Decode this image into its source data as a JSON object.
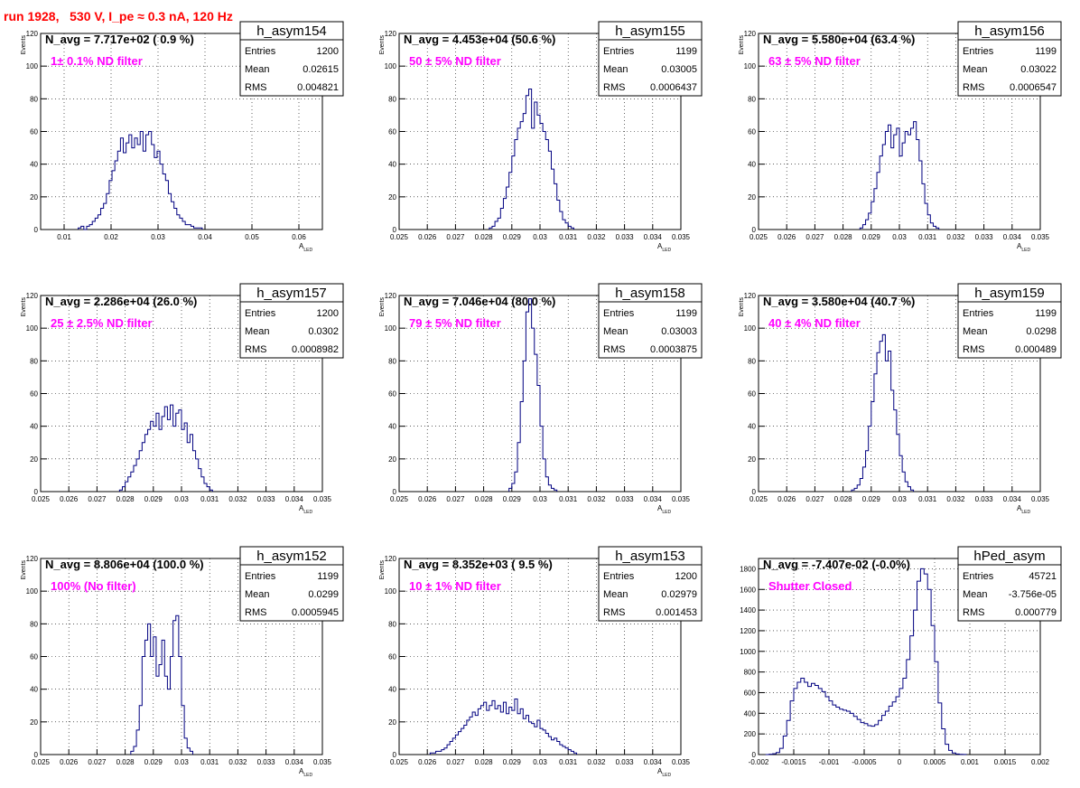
{
  "header": {
    "run_title": "run 1928,   530 V, I_pe ≈ 0.3 nA, 120 Hz"
  },
  "colors": {
    "histogram": "#000080",
    "annotation": "#ff00ff",
    "title": "#ff0000",
    "grid": "#000000"
  },
  "chart_data": [
    {
      "type": "bar",
      "name": "h_asym154",
      "navg": "N_avg = 7.717e+02 ( 0.9 %)",
      "filter": "1± 0.1% ND filter",
      "stats": {
        "entries": "1200",
        "mean": "0.02615",
        "rms": "0.004821"
      },
      "xlabel": "A",
      "xlabel_sub": "LED",
      "ylabel": "Events",
      "xlim": [
        0.005,
        0.065
      ],
      "ylim": [
        0,
        120
      ],
      "xticks": [
        0.01,
        0.02,
        0.03,
        0.04,
        0.05,
        0.06
      ],
      "xtick_labels": [
        "0.01",
        "0.02",
        "0.03",
        "0.04",
        "0.05",
        "0.06"
      ],
      "yticks": [
        0,
        20,
        40,
        60,
        80,
        100,
        120
      ],
      "ytick_labels": [
        "0",
        "20",
        "40",
        "60",
        "80",
        "100",
        "120"
      ],
      "bins": {
        "start": 0.013,
        "width": 0.0006
      },
      "values": [
        1,
        2,
        0,
        2,
        3,
        5,
        7,
        9,
        13,
        16,
        22,
        30,
        36,
        42,
        48,
        56,
        47,
        53,
        58,
        50,
        56,
        52,
        60,
        48,
        58,
        60,
        52,
        44,
        48,
        40,
        34,
        30,
        22,
        17,
        13,
        9,
        7,
        5,
        3,
        3,
        2,
        1,
        1,
        1
      ]
    },
    {
      "type": "bar",
      "name": "h_asym155",
      "navg": "N_avg = 4.453e+04 (50.6 %)",
      "filter": "50 ± 5% ND filter",
      "stats": {
        "entries": "1199",
        "mean": "0.03005",
        "rms": "0.0006437"
      },
      "xlabel": "A",
      "xlabel_sub": "LED",
      "ylabel": "Events",
      "xlim": [
        0.025,
        0.035
      ],
      "ylim": [
        0,
        120
      ],
      "xticks": [
        0.025,
        0.026,
        0.027,
        0.028,
        0.029,
        0.03,
        0.031,
        0.032,
        0.033,
        0.034,
        0.035
      ],
      "xtick_labels": [
        "0.025",
        "0.026",
        "0.027",
        "0.028",
        "0.029",
        "0.03",
        "0.031",
        "0.032",
        "0.033",
        "0.034",
        "0.035"
      ],
      "yticks": [
        0,
        20,
        40,
        60,
        80,
        100,
        120
      ],
      "ytick_labels": [
        "0",
        "20",
        "40",
        "60",
        "80",
        "100",
        "120"
      ],
      "bins": {
        "start": 0.0282,
        "width": 0.0001
      },
      "values": [
        1,
        2,
        5,
        7,
        13,
        19,
        26,
        35,
        45,
        55,
        62,
        66,
        71,
        82,
        86,
        62,
        78,
        70,
        65,
        60,
        55,
        48,
        37,
        28,
        18,
        11,
        6,
        4,
        2,
        1
      ]
    },
    {
      "type": "bar",
      "name": "h_asym156",
      "navg": "N_avg = 5.580e+04 (63.4 %)",
      "filter": "63 ± 5% ND filter",
      "stats": {
        "entries": "1199",
        "mean": "0.03022",
        "rms": "0.0006547"
      },
      "xlabel": "A",
      "xlabel_sub": "LED",
      "ylabel": "Events",
      "xlim": [
        0.025,
        0.035
      ],
      "ylim": [
        0,
        120
      ],
      "xticks": [
        0.025,
        0.026,
        0.027,
        0.028,
        0.029,
        0.03,
        0.031,
        0.032,
        0.033,
        0.034,
        0.035
      ],
      "xtick_labels": [
        "0.025",
        "0.026",
        "0.027",
        "0.028",
        "0.029",
        "0.03",
        "0.031",
        "0.032",
        "0.033",
        "0.034",
        "0.035"
      ],
      "yticks": [
        0,
        20,
        40,
        60,
        80,
        100,
        120
      ],
      "ytick_labels": [
        "0",
        "20",
        "40",
        "60",
        "80",
        "100",
        "120"
      ],
      "bins": {
        "start": 0.0286,
        "width": 0.0001
      },
      "values": [
        1,
        3,
        6,
        10,
        17,
        25,
        35,
        45,
        52,
        60,
        64,
        50,
        58,
        62,
        45,
        53,
        60,
        58,
        62,
        66,
        55,
        42,
        28,
        16,
        9,
        4,
        2,
        1
      ]
    },
    {
      "type": "bar",
      "name": "h_asym157",
      "navg": "N_avg = 2.286e+04 (26.0 %)",
      "filter": "25 ± 2.5% ND filter",
      "stats": {
        "entries": "1200",
        "mean": "0.0302",
        "rms": "0.0008982"
      },
      "xlabel": "A",
      "xlabel_sub": "LED",
      "ylabel": "Events",
      "xlim": [
        0.025,
        0.035
      ],
      "ylim": [
        0,
        120
      ],
      "xticks": [
        0.025,
        0.026,
        0.027,
        0.028,
        0.029,
        0.03,
        0.031,
        0.032,
        0.033,
        0.034,
        0.035
      ],
      "xtick_labels": [
        "0.025",
        "0.026",
        "0.027",
        "0.028",
        "0.029",
        "0.03",
        "0.031",
        "0.032",
        "0.033",
        "0.034",
        "0.035"
      ],
      "yticks": [
        0,
        20,
        40,
        60,
        80,
        100,
        120
      ],
      "ytick_labels": [
        "0",
        "20",
        "40",
        "60",
        "80",
        "100",
        "120"
      ],
      "bins": {
        "start": 0.0278,
        "width": 0.0001
      },
      "values": [
        1,
        3,
        6,
        9,
        12,
        16,
        20,
        25,
        30,
        35,
        38,
        43,
        40,
        48,
        38,
        46,
        52,
        44,
        53,
        40,
        48,
        50,
        38,
        42,
        30,
        35,
        25,
        20,
        14,
        9,
        5,
        3,
        1
      ]
    },
    {
      "type": "bar",
      "name": "h_asym158",
      "navg": "N_avg = 7.046e+04 (80.0 %)",
      "filter": "79 ± 5% ND filter",
      "stats": {
        "entries": "1199",
        "mean": "0.03003",
        "rms": "0.0003875"
      },
      "xlabel": "A",
      "xlabel_sub": "LED",
      "ylabel": "Events",
      "xlim": [
        0.025,
        0.035
      ],
      "ylim": [
        0,
        120
      ],
      "xticks": [
        0.025,
        0.026,
        0.027,
        0.028,
        0.029,
        0.03,
        0.031,
        0.032,
        0.033,
        0.034,
        0.035
      ],
      "xtick_labels": [
        "0.025",
        "0.026",
        "0.027",
        "0.028",
        "0.029",
        "0.03",
        "0.031",
        "0.032",
        "0.033",
        "0.034",
        "0.035"
      ],
      "yticks": [
        0,
        20,
        40,
        60,
        80,
        100,
        120
      ],
      "ytick_labels": [
        "0",
        "20",
        "40",
        "60",
        "80",
        "100",
        "120"
      ],
      "bins": {
        "start": 0.0289,
        "width": 0.0001
      },
      "values": [
        2,
        5,
        12,
        30,
        55,
        80,
        110,
        118,
        100,
        84,
        65,
        40,
        20,
        9,
        4,
        2,
        1
      ]
    },
    {
      "type": "bar",
      "name": "h_asym159",
      "navg": "N_avg = 3.580e+04 (40.7 %)",
      "filter": "40 ± 4% ND filter",
      "stats": {
        "entries": "1199",
        "mean": "0.0298",
        "rms": "0.000489"
      },
      "xlabel": "A",
      "xlabel_sub": "LED",
      "ylabel": "Events",
      "xlim": [
        0.025,
        0.035
      ],
      "ylim": [
        0,
        120
      ],
      "xticks": [
        0.025,
        0.026,
        0.027,
        0.028,
        0.029,
        0.03,
        0.031,
        0.032,
        0.033,
        0.034,
        0.035
      ],
      "xtick_labels": [
        "0.025",
        "0.026",
        "0.027",
        "0.028",
        "0.029",
        "0.03",
        "0.031",
        "0.032",
        "0.033",
        "0.034",
        "0.035"
      ],
      "yticks": [
        0,
        20,
        40,
        60,
        80,
        100,
        120
      ],
      "ytick_labels": [
        "0",
        "20",
        "40",
        "60",
        "80",
        "100",
        "120"
      ],
      "bins": {
        "start": 0.0283,
        "width": 0.0001
      },
      "values": [
        1,
        2,
        4,
        8,
        15,
        25,
        40,
        55,
        72,
        85,
        92,
        96,
        80,
        86,
        62,
        50,
        35,
        22,
        12,
        6,
        3,
        1
      ]
    },
    {
      "type": "bar",
      "name": "h_asym152",
      "navg": "N_avg = 8.806e+04 (100.0 %)",
      "filter": "100% (No filter)",
      "stats": {
        "entries": "1199",
        "mean": "0.0299",
        "rms": "0.0005945"
      },
      "xlabel": "A",
      "xlabel_sub": "LED",
      "ylabel": "Events",
      "xlim": [
        0.025,
        0.035
      ],
      "ylim": [
        0,
        120
      ],
      "xticks": [
        0.025,
        0.026,
        0.027,
        0.028,
        0.029,
        0.03,
        0.031,
        0.032,
        0.033,
        0.034,
        0.035
      ],
      "xtick_labels": [
        "0.025",
        "0.026",
        "0.027",
        "0.028",
        "0.029",
        "0.03",
        "0.031",
        "0.032",
        "0.033",
        "0.034",
        "0.035"
      ],
      "yticks": [
        0,
        20,
        40,
        60,
        80,
        100,
        120
      ],
      "ytick_labels": [
        "0",
        "20",
        "40",
        "60",
        "80",
        "100",
        "120"
      ],
      "bins": {
        "start": 0.0282,
        "width": 0.0001
      },
      "values": [
        2,
        5,
        15,
        30,
        60,
        70,
        80,
        60,
        72,
        48,
        55,
        70,
        48,
        40,
        60,
        82,
        85,
        60,
        30,
        10,
        4,
        2
      ]
    },
    {
      "type": "bar",
      "name": "h_asym153",
      "navg": "N_avg = 8.352e+03 ( 9.5 %)",
      "filter": "10 ± 1% ND filter",
      "stats": {
        "entries": "1200",
        "mean": "0.02979",
        "rms": "0.001453"
      },
      "xlabel": "A",
      "xlabel_sub": "LED",
      "ylabel": "Events",
      "xlim": [
        0.025,
        0.035
      ],
      "ylim": [
        0,
        120
      ],
      "xticks": [
        0.025,
        0.026,
        0.027,
        0.028,
        0.029,
        0.03,
        0.031,
        0.032,
        0.033,
        0.034,
        0.035
      ],
      "xtick_labels": [
        "0.025",
        "0.026",
        "0.027",
        "0.028",
        "0.029",
        "0.03",
        "0.031",
        "0.032",
        "0.033",
        "0.034",
        "0.035"
      ],
      "yticks": [
        0,
        20,
        40,
        60,
        80,
        100,
        120
      ],
      "ytick_labels": [
        "0",
        "20",
        "40",
        "60",
        "80",
        "100",
        "120"
      ],
      "bins": {
        "start": 0.0261,
        "width": 0.0001
      },
      "values": [
        1,
        1,
        2,
        2,
        3,
        4,
        6,
        8,
        10,
        12,
        14,
        16,
        18,
        21,
        23,
        26,
        24,
        28,
        30,
        32,
        27,
        30,
        33,
        28,
        30,
        26,
        32,
        25,
        29,
        27,
        34,
        25,
        28,
        22,
        24,
        20,
        19,
        17,
        21,
        16,
        15,
        13,
        11,
        9,
        10,
        8,
        6,
        5,
        4,
        3,
        2,
        1
      ]
    },
    {
      "type": "bar",
      "name": "hPed_asym",
      "navg": "N_avg = -7.407e-02 (-0.0%)",
      "filter": "Shutter Closed",
      "stats": {
        "entries": "45721",
        "mean": "-3.756e-05",
        "rms": "0.000779"
      },
      "xlabel": "",
      "xlabel_sub": "",
      "ylabel": "",
      "xlim": [
        -0.002,
        0.002
      ],
      "ylim": [
        0,
        1900
      ],
      "xticks": [
        -0.002,
        -0.0015,
        -0.001,
        -0.0005,
        0,
        0.0005,
        0.001,
        0.0015,
        0.002
      ],
      "xtick_labels": [
        "-0.002",
        "-0.0015",
        "-0.001",
        "-0.0005",
        "0",
        "0.0005",
        "0.001",
        "0.0015",
        "0.002"
      ],
      "yticks": [
        0,
        200,
        400,
        600,
        800,
        1000,
        1200,
        1400,
        1600,
        1800
      ],
      "ytick_labels": [
        "0",
        "200",
        "400",
        "600",
        "800",
        "1000",
        "1200",
        "1400",
        "1600",
        "1800"
      ],
      "bins": {
        "start": -0.0019,
        "width": 5e-05
      },
      "values": [
        0,
        3,
        8,
        20,
        60,
        180,
        330,
        520,
        640,
        700,
        740,
        700,
        660,
        690,
        670,
        640,
        610,
        560,
        520,
        480,
        460,
        440,
        430,
        420,
        400,
        370,
        340,
        310,
        300,
        280,
        275,
        290,
        330,
        380,
        420,
        470,
        510,
        560,
        640,
        740,
        920,
        1150,
        1400,
        1680,
        1800,
        1750,
        1600,
        1250,
        900,
        500,
        250,
        100,
        40,
        15,
        5,
        2,
        1
      ]
    }
  ]
}
